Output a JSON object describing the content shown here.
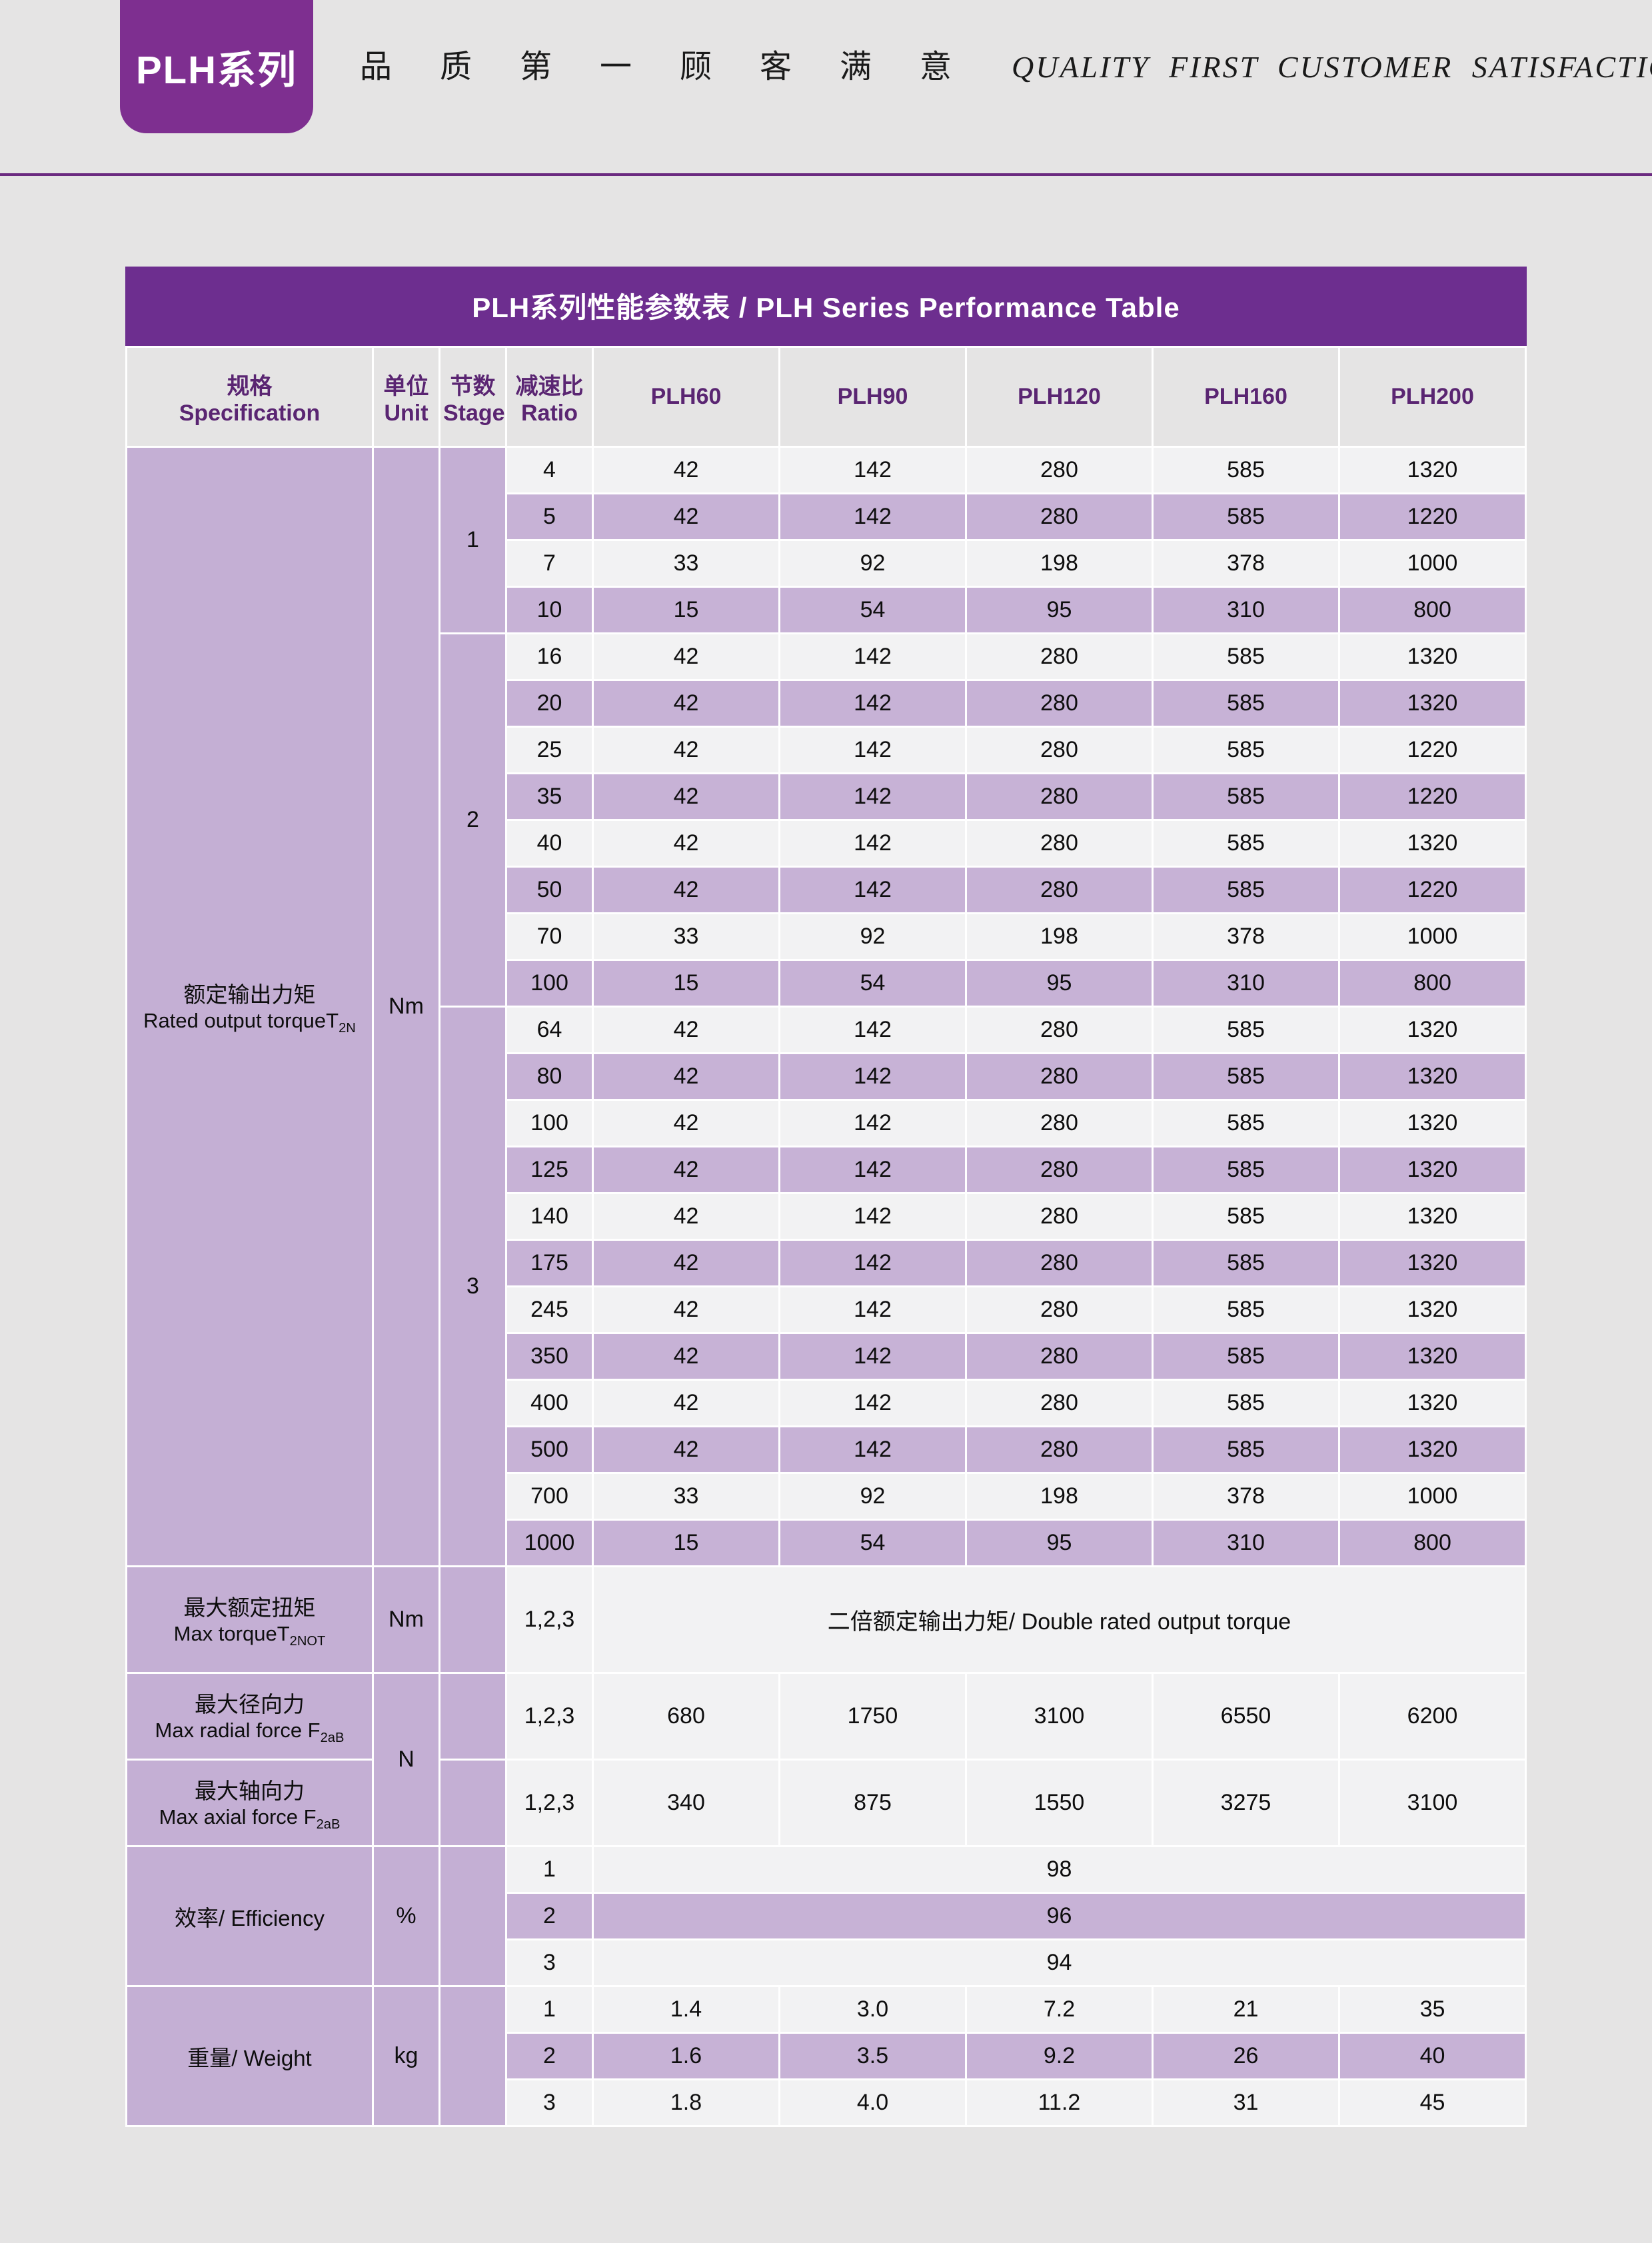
{
  "header": {
    "series_tab": "PLH系列",
    "slogan_zh": "品 质 第 一  顾 客 满 意",
    "slogan_en": "QUALITY FIRST  CUSTOMER SATISFACTION"
  },
  "table": {
    "title": "PLH系列性能参数表   /   PLH Series Performance Table",
    "columns": {
      "spec_cn": "规格",
      "spec_en": "Specification",
      "unit_cn": "单位",
      "unit_en": "Unit",
      "stage_cn": "节数",
      "stage_en": "Stage",
      "ratio_cn": "减速比",
      "ratio_en": "Ratio",
      "models": [
        "PLH60",
        "PLH90",
        "PLH120",
        "PLH160",
        "PLH200"
      ]
    },
    "sections": [
      {
        "spec_cn": "额定输出力矩",
        "spec_en_html": "Rated output torqueT<sub>2N</sub>",
        "unit": "Nm",
        "stages": [
          {
            "stage": "1",
            "rows": [
              {
                "ratio": "4",
                "v": [
                  "42",
                  "142",
                  "280",
                  "585",
                  "1320"
                ]
              },
              {
                "ratio": "5",
                "v": [
                  "42",
                  "142",
                  "280",
                  "585",
                  "1220"
                ]
              },
              {
                "ratio": "7",
                "v": [
                  "33",
                  "92",
                  "198",
                  "378",
                  "1000"
                ]
              },
              {
                "ratio": "10",
                "v": [
                  "15",
                  "54",
                  "95",
                  "310",
                  "800"
                ]
              }
            ]
          },
          {
            "stage": "2",
            "rows": [
              {
                "ratio": "16",
                "v": [
                  "42",
                  "142",
                  "280",
                  "585",
                  "1320"
                ]
              },
              {
                "ratio": "20",
                "v": [
                  "42",
                  "142",
                  "280",
                  "585",
                  "1320"
                ]
              },
              {
                "ratio": "25",
                "v": [
                  "42",
                  "142",
                  "280",
                  "585",
                  "1220"
                ]
              },
              {
                "ratio": "35",
                "v": [
                  "42",
                  "142",
                  "280",
                  "585",
                  "1220"
                ]
              },
              {
                "ratio": "40",
                "v": [
                  "42",
                  "142",
                  "280",
                  "585",
                  "1320"
                ]
              },
              {
                "ratio": "50",
                "v": [
                  "42",
                  "142",
                  "280",
                  "585",
                  "1220"
                ]
              },
              {
                "ratio": "70",
                "v": [
                  "33",
                  "92",
                  "198",
                  "378",
                  "1000"
                ]
              },
              {
                "ratio": "100",
                "v": [
                  "15",
                  "54",
                  "95",
                  "310",
                  "800"
                ]
              }
            ]
          },
          {
            "stage": "3",
            "rows": [
              {
                "ratio": "64",
                "v": [
                  "42",
                  "142",
                  "280",
                  "585",
                  "1320"
                ]
              },
              {
                "ratio": "80",
                "v": [
                  "42",
                  "142",
                  "280",
                  "585",
                  "1320"
                ]
              },
              {
                "ratio": "100",
                "v": [
                  "42",
                  "142",
                  "280",
                  "585",
                  "1320"
                ]
              },
              {
                "ratio": "125",
                "v": [
                  "42",
                  "142",
                  "280",
                  "585",
                  "1320"
                ]
              },
              {
                "ratio": "140",
                "v": [
                  "42",
                  "142",
                  "280",
                  "585",
                  "1320"
                ]
              },
              {
                "ratio": "175",
                "v": [
                  "42",
                  "142",
                  "280",
                  "585",
                  "1320"
                ]
              },
              {
                "ratio": "245",
                "v": [
                  "42",
                  "142",
                  "280",
                  "585",
                  "1320"
                ]
              },
              {
                "ratio": "350",
                "v": [
                  "42",
                  "142",
                  "280",
                  "585",
                  "1320"
                ]
              },
              {
                "ratio": "400",
                "v": [
                  "42",
                  "142",
                  "280",
                  "585",
                  "1320"
                ]
              },
              {
                "ratio": "500",
                "v": [
                  "42",
                  "142",
                  "280",
                  "585",
                  "1320"
                ]
              },
              {
                "ratio": "700",
                "v": [
                  "33",
                  "92",
                  "198",
                  "378",
                  "1000"
                ]
              },
              {
                "ratio": "1000",
                "v": [
                  "15",
                  "54",
                  "95",
                  "310",
                  "800"
                ]
              }
            ]
          }
        ]
      }
    ],
    "max_torque": {
      "spec_cn": "最大额定扭矩",
      "spec_en_html": "Max torqueT<sub>2NOT</sub>",
      "unit": "Nm",
      "stage": "",
      "ratio": "1,2,3",
      "note": "二倍额定输出力矩/ Double rated output torque"
    },
    "radial": {
      "spec_cn": "最大径向力",
      "spec_en_html": "Max radial force F<sub>2aB</sub>",
      "ratio": "1,2,3",
      "v": [
        "680",
        "1750",
        "3100",
        "6550",
        "6200"
      ]
    },
    "axial": {
      "spec_cn": "最大轴向力",
      "spec_en_html": "Max axial force F<sub>2aB</sub>",
      "ratio": "1,2,3",
      "v": [
        "340",
        "875",
        "1550",
        "3275",
        "3100"
      ]
    },
    "force_unit": "N",
    "efficiency": {
      "spec": "效率/ Efficiency",
      "unit": "%",
      "rows": [
        {
          "ratio": "1",
          "v": "98"
        },
        {
          "ratio": "2",
          "v": "96"
        },
        {
          "ratio": "3",
          "v": "94"
        }
      ]
    },
    "weight": {
      "spec": "重量/ Weight",
      "unit": "kg",
      "rows": [
        {
          "ratio": "1",
          "v": [
            "1.4",
            "3.0",
            "7.2",
            "21",
            "35"
          ]
        },
        {
          "ratio": "2",
          "v": [
            "1.6",
            "3.5",
            "9.2",
            "26",
            "40"
          ]
        },
        {
          "ratio": "3",
          "v": [
            "1.8",
            "4.0",
            "11.2",
            "31",
            "45"
          ]
        }
      ]
    },
    "row_stripe": {
      "light": "#f2f2f3",
      "dark": "#c7b2d6"
    }
  },
  "colors": {
    "page_bg": "#e5e4e4",
    "tab_purple": "#7e2f90",
    "rule_purple": "#6b2a80",
    "title_purple": "#6d2e8f",
    "section_bg": "#c4afd4"
  }
}
